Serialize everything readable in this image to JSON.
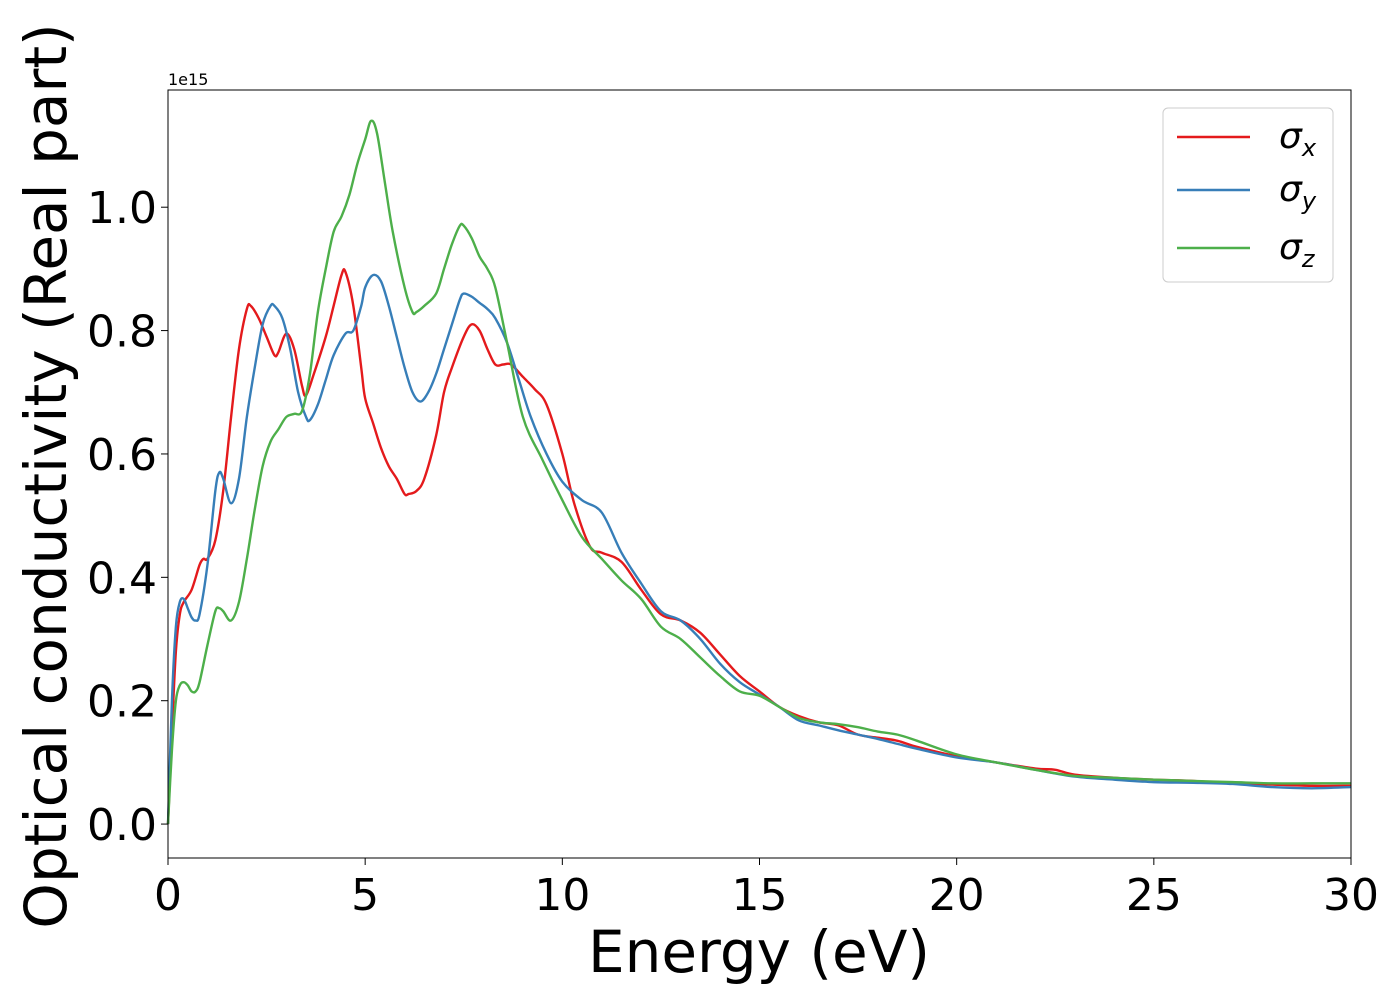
{
  "chart_data": {
    "type": "line",
    "title": "",
    "xlabel": "Energy (eV)",
    "ylabel": "Optical conductivity (Real part)",
    "offset_label": "1e15",
    "xlim": [
      0,
      30
    ],
    "ylim": [
      -0.055,
      1.19
    ],
    "x_ticks": [
      0,
      5,
      10,
      15,
      20,
      25,
      30
    ],
    "x_tick_labels": [
      "0",
      "5",
      "10",
      "15",
      "20",
      "25",
      "30"
    ],
    "y_ticks": [
      0.0,
      0.2,
      0.4,
      0.6,
      0.8,
      1.0
    ],
    "y_tick_labels": [
      "0.0",
      "0.2",
      "0.4",
      "0.6",
      "0.8",
      "1.0"
    ],
    "grid": false,
    "legend_position": "top-right",
    "series": [
      {
        "name": "σx",
        "symbol": "σ",
        "subscript": "x",
        "color": "#e41a1c",
        "x": [
          0,
          0.1,
          0.2,
          0.3,
          0.4,
          0.6,
          0.8,
          0.9,
          1.0,
          1.2,
          1.4,
          1.6,
          1.8,
          2.0,
          2.1,
          2.3,
          2.5,
          2.7,
          2.8,
          3.0,
          3.2,
          3.4,
          3.5,
          3.7,
          4.0,
          4.2,
          4.4,
          4.5,
          4.7,
          4.9,
          5.0,
          5.2,
          5.4,
          5.6,
          5.8,
          6.0,
          6.1,
          6.3,
          6.5,
          6.8,
          7.0,
          7.2,
          7.5,
          7.7,
          7.9,
          8.1,
          8.3,
          8.5,
          8.7,
          9.0,
          9.3,
          9.6,
          10.0,
          10.3,
          10.7,
          11.0,
          11.5,
          12.0,
          12.5,
          13.0,
          13.5,
          14.0,
          14.5,
          15.0,
          15.5,
          16.0,
          16.5,
          17.0,
          17.5,
          18.0,
          18.5,
          19.0,
          20.0,
          21.0,
          22.0,
          22.5,
          23.0,
          24.0,
          25.0,
          26.0,
          27.0,
          28.0,
          29.0,
          30.0
        ],
        "y": [
          0.0,
          0.15,
          0.28,
          0.34,
          0.36,
          0.38,
          0.42,
          0.43,
          0.43,
          0.46,
          0.54,
          0.66,
          0.77,
          0.835,
          0.84,
          0.82,
          0.79,
          0.76,
          0.765,
          0.795,
          0.77,
          0.71,
          0.695,
          0.73,
          0.79,
          0.84,
          0.89,
          0.895,
          0.84,
          0.74,
          0.69,
          0.65,
          0.61,
          0.58,
          0.56,
          0.535,
          0.535,
          0.54,
          0.56,
          0.63,
          0.7,
          0.74,
          0.79,
          0.81,
          0.8,
          0.77,
          0.745,
          0.745,
          0.745,
          0.725,
          0.705,
          0.68,
          0.6,
          0.52,
          0.45,
          0.44,
          0.425,
          0.38,
          0.34,
          0.33,
          0.31,
          0.275,
          0.24,
          0.215,
          0.19,
          0.175,
          0.165,
          0.16,
          0.145,
          0.14,
          0.135,
          0.125,
          0.11,
          0.1,
          0.09,
          0.088,
          0.08,
          0.075,
          0.072,
          0.07,
          0.066,
          0.064,
          0.062,
          0.062
        ]
      },
      {
        "name": "σy",
        "symbol": "σ",
        "subscript": "y",
        "color": "#377eb8",
        "x": [
          0,
          0.1,
          0.2,
          0.3,
          0.4,
          0.5,
          0.6,
          0.7,
          0.8,
          1.0,
          1.2,
          1.3,
          1.4,
          1.6,
          1.8,
          2.0,
          2.2,
          2.4,
          2.6,
          2.7,
          2.9,
          3.1,
          3.3,
          3.5,
          3.6,
          3.8,
          4.0,
          4.2,
          4.5,
          4.7,
          4.9,
          5.0,
          5.2,
          5.4,
          5.6,
          5.8,
          6.0,
          6.2,
          6.4,
          6.6,
          6.8,
          7.0,
          7.2,
          7.4,
          7.5,
          7.7,
          7.9,
          8.1,
          8.3,
          8.6,
          8.9,
          9.2,
          9.6,
          10.0,
          10.5,
          11.0,
          11.5,
          12.0,
          12.5,
          13.0,
          13.5,
          14.0,
          14.5,
          15.0,
          15.5,
          16.0,
          16.5,
          17.0,
          17.5,
          18.0,
          18.5,
          19.0,
          20.0,
          21.0,
          22.0,
          23.0,
          24.0,
          25.0,
          26.0,
          27.0,
          28.0,
          29.0,
          30.0
        ],
        "y": [
          0.0,
          0.2,
          0.32,
          0.36,
          0.365,
          0.35,
          0.335,
          0.33,
          0.34,
          0.42,
          0.54,
          0.57,
          0.56,
          0.52,
          0.56,
          0.66,
          0.74,
          0.81,
          0.84,
          0.84,
          0.82,
          0.77,
          0.7,
          0.66,
          0.655,
          0.68,
          0.72,
          0.76,
          0.795,
          0.8,
          0.84,
          0.87,
          0.89,
          0.88,
          0.84,
          0.79,
          0.74,
          0.7,
          0.685,
          0.7,
          0.73,
          0.77,
          0.81,
          0.85,
          0.86,
          0.855,
          0.845,
          0.835,
          0.82,
          0.78,
          0.72,
          0.66,
          0.6,
          0.555,
          0.525,
          0.505,
          0.44,
          0.39,
          0.345,
          0.33,
          0.3,
          0.26,
          0.23,
          0.21,
          0.19,
          0.168,
          0.16,
          0.152,
          0.145,
          0.138,
          0.13,
          0.122,
          0.108,
          0.1,
          0.088,
          0.077,
          0.072,
          0.068,
          0.067,
          0.065,
          0.06,
          0.058,
          0.06
        ]
      },
      {
        "name": "σz",
        "symbol": "σ",
        "subscript": "z",
        "color": "#4daf4a",
        "x": [
          0,
          0.1,
          0.2,
          0.3,
          0.4,
          0.5,
          0.6,
          0.7,
          0.8,
          1.0,
          1.2,
          1.3,
          1.4,
          1.6,
          1.8,
          2.0,
          2.2,
          2.4,
          2.6,
          2.8,
          3.0,
          3.2,
          3.4,
          3.6,
          3.8,
          4.0,
          4.2,
          4.4,
          4.6,
          4.8,
          5.0,
          5.15,
          5.3,
          5.5,
          5.7,
          6.0,
          6.2,
          6.3,
          6.5,
          6.8,
          7.0,
          7.2,
          7.4,
          7.5,
          7.7,
          7.9,
          8.1,
          8.3,
          8.6,
          9.0,
          9.5,
          10.0,
          10.5,
          11.0,
          11.5,
          12.0,
          12.5,
          13.0,
          13.5,
          14.0,
          14.5,
          15.0,
          15.5,
          16.0,
          16.5,
          17.0,
          17.5,
          18.0,
          18.5,
          19.0,
          20.0,
          21.0,
          22.0,
          23.0,
          24.0,
          25.0,
          26.0,
          27.0,
          28.0,
          29.0,
          30.0
        ],
        "y": [
          0.0,
          0.12,
          0.2,
          0.225,
          0.23,
          0.225,
          0.215,
          0.215,
          0.23,
          0.29,
          0.345,
          0.35,
          0.345,
          0.33,
          0.36,
          0.43,
          0.51,
          0.58,
          0.62,
          0.64,
          0.66,
          0.665,
          0.67,
          0.73,
          0.83,
          0.9,
          0.96,
          0.985,
          1.02,
          1.07,
          1.11,
          1.14,
          1.12,
          1.04,
          0.96,
          0.87,
          0.83,
          0.83,
          0.84,
          0.86,
          0.9,
          0.94,
          0.97,
          0.97,
          0.95,
          0.92,
          0.9,
          0.87,
          0.78,
          0.66,
          0.59,
          0.525,
          0.465,
          0.43,
          0.395,
          0.365,
          0.32,
          0.3,
          0.27,
          0.24,
          0.215,
          0.208,
          0.19,
          0.172,
          0.165,
          0.162,
          0.157,
          0.15,
          0.145,
          0.135,
          0.113,
          0.1,
          0.088,
          0.078,
          0.075,
          0.072,
          0.07,
          0.068,
          0.066,
          0.066,
          0.066
        ]
      }
    ]
  }
}
